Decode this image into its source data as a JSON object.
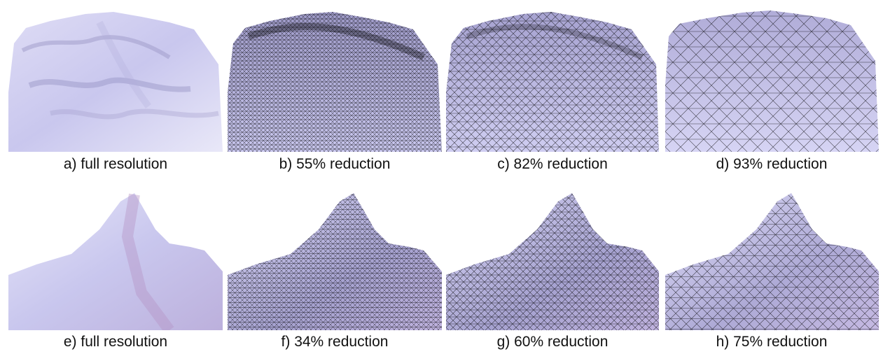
{
  "figure": {
    "rows": [
      {
        "panels": [
          {
            "id": "a",
            "caption": "a) full resolution",
            "terrain": "ridge",
            "reduction": 0
          },
          {
            "id": "b",
            "caption": "b) 55% reduction",
            "terrain": "ridge",
            "reduction": 55
          },
          {
            "id": "c",
            "caption": "c) 82% reduction",
            "terrain": "ridge",
            "reduction": 82
          },
          {
            "id": "d",
            "caption": "d) 93% reduction",
            "terrain": "ridge",
            "reduction": 93
          }
        ]
      },
      {
        "panels": [
          {
            "id": "e",
            "caption": "e) full resolution",
            "terrain": "peak",
            "reduction": 0
          },
          {
            "id": "f",
            "caption": "f) 34% reduction",
            "terrain": "peak",
            "reduction": 34
          },
          {
            "id": "g",
            "caption": "g) 60% reduction",
            "terrain": "peak",
            "reduction": 60
          },
          {
            "id": "h",
            "caption": "h) 75% reduction",
            "terrain": "peak",
            "reduction": 75
          }
        ]
      }
    ],
    "colors": {
      "surface": "#c9c7ee",
      "shadow": "#8a86b8",
      "highlight": "#f2f1fb",
      "wire": "#000000"
    }
  }
}
